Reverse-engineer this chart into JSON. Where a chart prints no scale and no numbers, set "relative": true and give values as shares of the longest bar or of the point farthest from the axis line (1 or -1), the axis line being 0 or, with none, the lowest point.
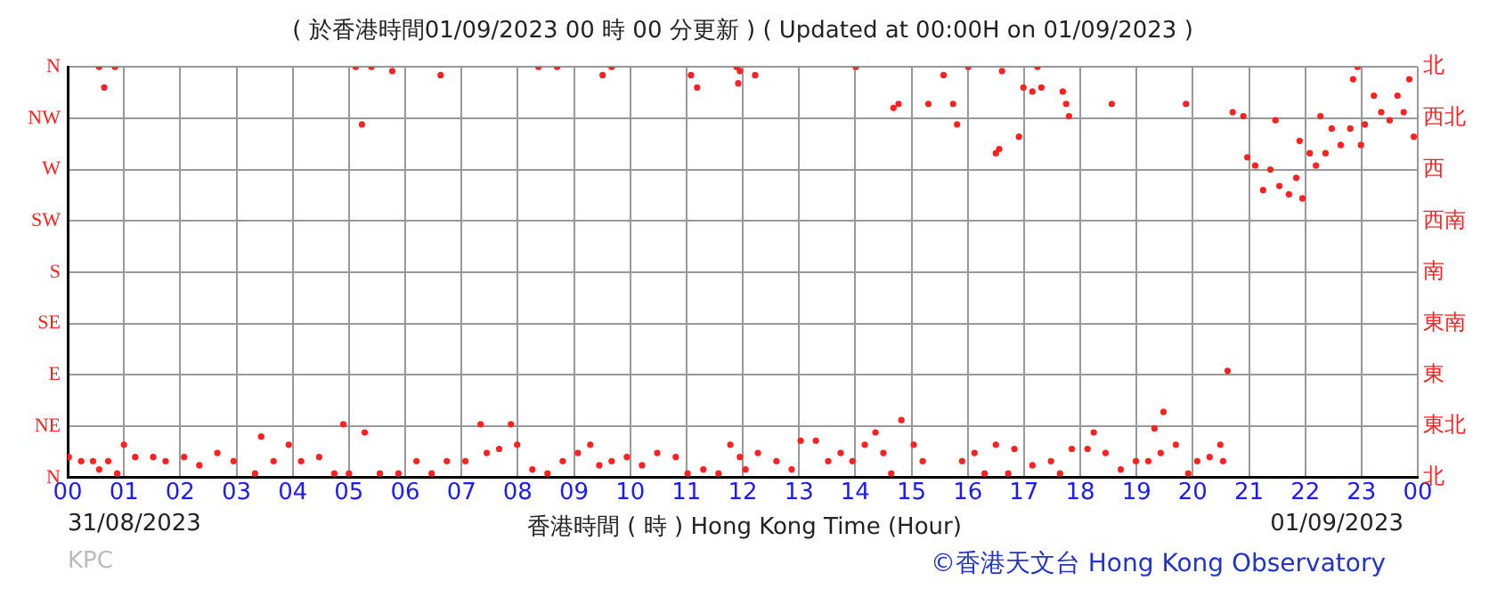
{
  "chart_data": {
    "type": "scatter",
    "title": "( 於香港時間01/09/2023 00 時 00 分更新 ) ( Updated at 00:00H on 01/09/2023 )",
    "xlabel": "香港時間 ( 時 ) Hong Kong Time (Hour)",
    "annotations": [
      "31/08/2023",
      "01/09/2023",
      "KPC",
      "©香港天文台 Hong Kong Observatory",
      "N",
      "NE",
      "E",
      "SE",
      "S",
      "SW",
      "W",
      "NW",
      "N",
      "北",
      "東北",
      "東",
      "東南",
      "南",
      "西南",
      "西",
      "西北",
      "北"
    ],
    "relative": true,
    "xlim": [
      0,
      24
    ],
    "xticks": [
      {
        "value": 0,
        "label": "00"
      },
      {
        "value": 1,
        "label": "01"
      },
      {
        "value": 2,
        "label": "02"
      },
      {
        "value": 3,
        "label": "03"
      },
      {
        "value": 4,
        "label": "04"
      },
      {
        "value": 5,
        "label": "05"
      },
      {
        "value": 6,
        "label": "06"
      },
      {
        "value": 7,
        "label": "07"
      },
      {
        "value": 8,
        "label": "08"
      },
      {
        "value": 9,
        "label": "09"
      },
      {
        "value": 10,
        "label": "10"
      },
      {
        "value": 11,
        "label": "11"
      },
      {
        "value": 12,
        "label": "12"
      },
      {
        "value": 13,
        "label": "13"
      },
      {
        "value": 14,
        "label": "14"
      },
      {
        "value": 15,
        "label": "15"
      },
      {
        "value": 16,
        "label": "16"
      },
      {
        "value": 17,
        "label": "17"
      },
      {
        "value": 18,
        "label": "18"
      },
      {
        "value": 19,
        "label": "19"
      },
      {
        "value": 20,
        "label": "20"
      },
      {
        "value": 21,
        "label": "21"
      },
      {
        "value": 22,
        "label": "22"
      },
      {
        "value": 23,
        "label": "23"
      },
      {
        "value": 24,
        "label": "00"
      }
    ],
    "grid": true,
    "marker": "circle",
    "series": [
      {
        "color": "#ff2020",
        "x": [
          0.02,
          0.24,
          0.45,
          0.56,
          0.72,
          0.88,
          1.0,
          1.2,
          1.52,
          1.74,
          2.07,
          2.34,
          2.66,
          2.95,
          3.33,
          3.44,
          3.66,
          3.93,
          4.15,
          4.47,
          4.74,
          4.9,
          5.0,
          5.28,
          5.55,
          5.88,
          6.2,
          6.47,
          6.74,
          7.07,
          7.34,
          7.45,
          7.67,
          7.88,
          7.99,
          8.26,
          8.53,
          8.8,
          9.07,
          9.29,
          9.45,
          9.67,
          9.94,
          10.21,
          10.48,
          10.81,
          11.02,
          11.3,
          11.57,
          11.78,
          11.95,
          12.05,
          12.27,
          12.6,
          12.87,
          13.03,
          13.3,
          13.52,
          13.74,
          13.95,
          14.17,
          14.36,
          14.5,
          14.64,
          14.82,
          15.04,
          15.2,
          15.9,
          16.12,
          16.3,
          16.5,
          16.72,
          16.83,
          17.15,
          17.48,
          17.64,
          17.85,
          18.13,
          18.24,
          18.45,
          18.72,
          18.99,
          19.21,
          19.32,
          19.43,
          19.48,
          19.7,
          19.92,
          20.08,
          20.3,
          20.49,
          20.54,
          20.62,
          0.56,
          0.65,
          0.84,
          5.12,
          5.23,
          5.4,
          5.77,
          6.63,
          8.37,
          8.7,
          9.51,
          9.67,
          11.08,
          11.19,
          11.89,
          11.92,
          11.95,
          12.22,
          14.01,
          14.68,
          14.77,
          15.3,
          15.57,
          15.74,
          15.81,
          16.01,
          16.5,
          16.56,
          16.61,
          16.91,
          16.99,
          17.15,
          17.24,
          17.31,
          17.69,
          17.75,
          17.8,
          18.56,
          19.88,
          20.71,
          20.9,
          20.97,
          21.11,
          21.25,
          21.38,
          21.47,
          21.54,
          21.71,
          21.84,
          21.9,
          21.95,
          22.08,
          22.19,
          22.27,
          22.36,
          22.47,
          22.63,
          22.8,
          22.85,
          22.93,
          22.99,
          23.06,
          23.22,
          23.35,
          23.5,
          23.64,
          23.75,
          23.85,
          23.93
        ],
        "values": [
          0.05,
          0.04,
          0.04,
          0.02,
          0.04,
          0.01,
          0.08,
          0.05,
          0.05,
          0.04,
          0.05,
          0.03,
          0.06,
          0.04,
          0.01,
          0.1,
          0.04,
          0.08,
          0.04,
          0.05,
          0.01,
          0.13,
          0.01,
          0.11,
          0.01,
          0.01,
          0.04,
          0.01,
          0.04,
          0.04,
          0.13,
          0.06,
          0.07,
          0.13,
          0.08,
          0.02,
          0.01,
          0.04,
          0.06,
          0.08,
          0.03,
          0.04,
          0.05,
          0.03,
          0.06,
          0.05,
          0.01,
          0.02,
          0.01,
          0.08,
          0.05,
          0.02,
          0.06,
          0.04,
          0.02,
          0.09,
          0.09,
          0.04,
          0.06,
          0.04,
          0.08,
          0.11,
          0.06,
          0.01,
          0.14,
          0.08,
          0.04,
          0.04,
          0.06,
          0.01,
          0.08,
          0.01,
          0.07,
          0.03,
          0.04,
          0.01,
          0.07,
          0.07,
          0.11,
          0.06,
          0.02,
          0.04,
          0.04,
          0.12,
          0.06,
          0.16,
          0.08,
          0.01,
          0.04,
          0.05,
          0.08,
          0.04,
          0.26,
          1,
          0.95,
          1,
          1,
          0.86,
          1,
          0.99,
          0.98,
          1,
          1,
          0.98,
          1,
          0.98,
          0.95,
          1,
          0.96,
          0.99,
          0.98,
          1,
          0.9,
          0.91,
          0.91,
          0.98,
          0.91,
          0.86,
          1,
          0.79,
          0.8,
          0.99,
          0.83,
          0.95,
          0.94,
          1,
          0.95,
          0.94,
          0.91,
          0.88,
          0.91,
          0.91,
          0.89,
          0.88,
          0.78,
          0.76,
          0.7,
          0.75,
          0.87,
          0.71,
          0.69,
          0.73,
          0.82,
          0.68,
          0.79,
          0.76,
          0.88,
          0.79,
          0.85,
          0.81,
          0.85,
          0.97,
          1,
          0.81,
          0.86,
          0.93,
          0.89,
          0.87,
          0.93,
          0.89,
          0.97,
          0.83
        ]
      }
    ]
  }
}
